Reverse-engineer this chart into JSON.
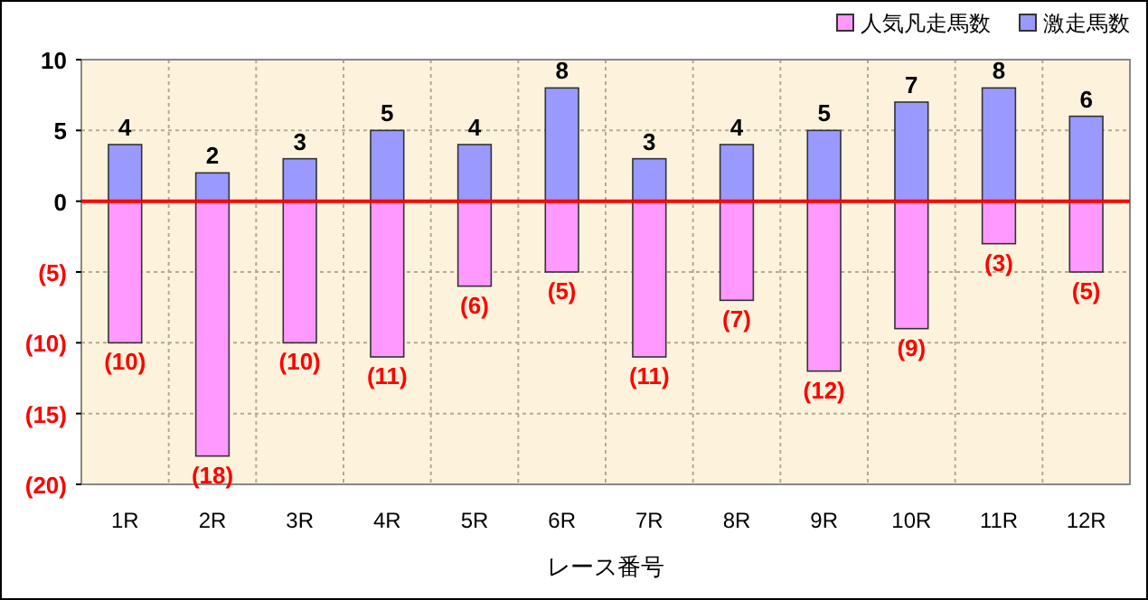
{
  "chart_data": {
    "type": "bar",
    "stacked": true,
    "xlabel": "レース番号",
    "categories": [
      "1R",
      "2R",
      "3R",
      "4R",
      "5R",
      "6R",
      "7R",
      "8R",
      "9R",
      "10R",
      "11R",
      "12R"
    ],
    "series": [
      {
        "name": "人気凡走馬数",
        "color": "#ff99ff",
        "values": [
          -10,
          -18,
          -10,
          -11,
          -6,
          -5,
          -11,
          -7,
          -12,
          -9,
          -3,
          -5
        ],
        "value_labels": [
          "(10)",
          "(18)",
          "(10)",
          "(11)",
          "(6)",
          "(5)",
          "(11)",
          "(7)",
          "(12)",
          "(9)",
          "(3)",
          "(5)"
        ]
      },
      {
        "name": "激走馬数",
        "color": "#9999ff",
        "values": [
          4,
          2,
          3,
          5,
          4,
          8,
          3,
          4,
          5,
          7,
          8,
          6
        ],
        "value_labels": [
          "4",
          "2",
          "3",
          "5",
          "4",
          "8",
          "3",
          "4",
          "5",
          "7",
          "8",
          "6"
        ]
      }
    ],
    "ylim": [
      -20,
      10
    ],
    "yticks": [
      10,
      5,
      0,
      {
        "value": -5,
        "label": "(5)"
      },
      {
        "value": -10,
        "label": "(10)"
      },
      {
        "value": -15,
        "label": "(15)"
      },
      {
        "value": -20,
        "label": "(20)"
      }
    ],
    "grid": true,
    "legend": "top right",
    "ref_lines": [
      {
        "axis": "y",
        "value": 0,
        "color": "#ff0000"
      }
    ]
  }
}
